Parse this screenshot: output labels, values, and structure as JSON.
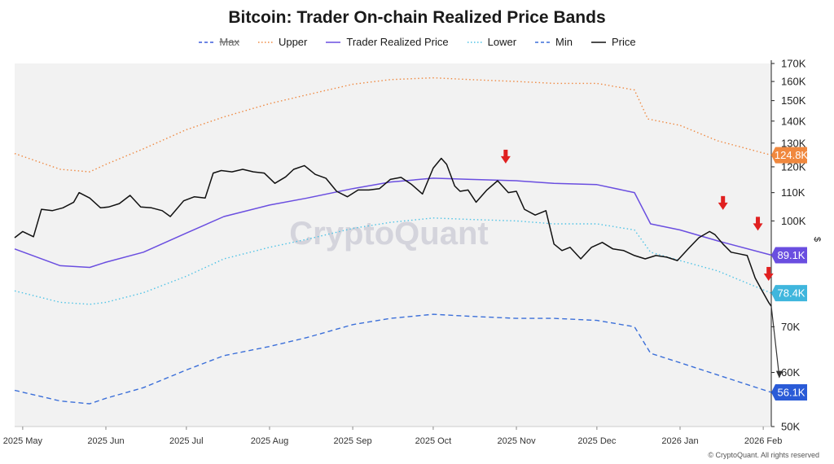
{
  "chart_data": {
    "type": "line",
    "title": "Bitcoin: Trader On-chain Realized Price Bands",
    "yunit": "$",
    "ylim": [
      50000,
      170000
    ],
    "yscale": "log",
    "yticks": [
      "170K",
      "160K",
      "150K",
      "140K",
      "130K",
      "120K",
      "110K",
      "100K",
      "70K",
      "60K",
      "50K"
    ],
    "ytick_values": [
      170000,
      160000,
      150000,
      140000,
      130000,
      120000,
      110000,
      100000,
      70000,
      60000,
      50000
    ],
    "xticks": [
      "2025 May",
      "2025 Jun",
      "2025 Jul",
      "2025 Aug",
      "2025 Sep",
      "2025 Oct",
      "2025 Nov",
      "2025 Dec",
      "2026 Jan",
      "2026 Feb"
    ],
    "xtick_dates": [
      "2025-05-01",
      "2025-06-01",
      "2025-07-01",
      "2025-08-01",
      "2025-09-01",
      "2025-10-01",
      "2025-11-01",
      "2025-12-01",
      "2026-01-01",
      "2026-02-01"
    ],
    "xlim": [
      "2025-04-28",
      "2026-02-04"
    ],
    "grid": false,
    "legend_position": "top-center",
    "watermark": "CryptoQuant",
    "series": [
      {
        "name": "Max",
        "style": "dashed",
        "color": "#3b5bdb",
        "hidden": true,
        "values": []
      },
      {
        "name": "Upper",
        "style": "dotted",
        "color": "#ef8a43",
        "x": [
          "2025-04-28",
          "2025-05-15",
          "2025-05-26",
          "2025-06-01",
          "2025-06-15",
          "2025-07-01",
          "2025-07-15",
          "2025-08-01",
          "2025-08-15",
          "2025-09-01",
          "2025-09-15",
          "2025-10-01",
          "2025-10-15",
          "2025-11-01",
          "2025-11-15",
          "2025-12-01",
          "2025-12-15",
          "2025-12-20",
          "2026-01-01",
          "2026-01-15",
          "2026-02-04"
        ],
        "values": [
          125500,
          119000,
          118000,
          121000,
          127500,
          136000,
          142000,
          148500,
          153000,
          158500,
          161000,
          162000,
          161000,
          160000,
          159000,
          159000,
          155500,
          141000,
          138000,
          131000,
          124800
        ]
      },
      {
        "name": "Trader Realized Price",
        "style": "solid",
        "color": "#6a4ee0",
        "x": [
          "2025-04-28",
          "2025-05-15",
          "2025-05-26",
          "2025-06-01",
          "2025-06-15",
          "2025-07-01",
          "2025-07-15",
          "2025-08-01",
          "2025-08-15",
          "2025-09-01",
          "2025-09-15",
          "2025-10-01",
          "2025-10-15",
          "2025-11-01",
          "2025-11-15",
          "2025-12-01",
          "2025-12-15",
          "2025-12-21",
          "2026-01-01",
          "2026-01-15",
          "2026-02-04"
        ],
        "values": [
          91000,
          86000,
          85500,
          87000,
          90000,
          96000,
          101500,
          105500,
          108000,
          111500,
          114000,
          115500,
          115000,
          114500,
          113500,
          113000,
          110000,
          99000,
          97000,
          93500,
          89100
        ]
      },
      {
        "name": "Lower",
        "style": "dotted",
        "color": "#4fc3e6",
        "x": [
          "2025-04-28",
          "2025-05-15",
          "2025-05-26",
          "2025-06-01",
          "2025-06-15",
          "2025-07-01",
          "2025-07-15",
          "2025-08-01",
          "2025-08-15",
          "2025-09-01",
          "2025-09-15",
          "2025-10-01",
          "2025-10-15",
          "2025-11-01",
          "2025-11-15",
          "2025-12-01",
          "2025-12-15",
          "2025-12-21",
          "2026-01-01",
          "2026-01-15",
          "2026-02-04"
        ],
        "values": [
          79000,
          76000,
          75500,
          76000,
          78500,
          83000,
          88000,
          91500,
          94000,
          97500,
          99500,
          101000,
          100500,
          100000,
          99000,
          99000,
          97000,
          90000,
          87500,
          84500,
          78400
        ]
      },
      {
        "name": "Min",
        "style": "dashed",
        "color": "#3b6fd9",
        "x": [
          "2025-04-28",
          "2025-05-15",
          "2025-05-26",
          "2025-06-01",
          "2025-06-15",
          "2025-07-01",
          "2025-07-15",
          "2025-08-01",
          "2025-08-15",
          "2025-09-01",
          "2025-09-15",
          "2025-10-01",
          "2025-10-15",
          "2025-11-01",
          "2025-11-15",
          "2025-12-01",
          "2025-12-15",
          "2025-12-21",
          "2026-01-01",
          "2026-01-15",
          "2026-02-04"
        ],
        "values": [
          56500,
          54500,
          54000,
          55000,
          57000,
          60500,
          63500,
          65500,
          67500,
          70500,
          72000,
          73000,
          72500,
          72000,
          72000,
          71500,
          70000,
          64000,
          62000,
          59500,
          56100
        ]
      },
      {
        "name": "Price",
        "style": "solid",
        "color": "#111111",
        "x": [
          "2025-04-28",
          "2025-05-01",
          "2025-05-05",
          "2025-05-08",
          "2025-05-12",
          "2025-05-16",
          "2025-05-20",
          "2025-05-22",
          "2025-05-26",
          "2025-05-30",
          "2025-06-02",
          "2025-06-06",
          "2025-06-10",
          "2025-06-14",
          "2025-06-18",
          "2025-06-22",
          "2025-06-25",
          "2025-06-30",
          "2025-07-04",
          "2025-07-08",
          "2025-07-11",
          "2025-07-14",
          "2025-07-18",
          "2025-07-22",
          "2025-07-26",
          "2025-07-30",
          "2025-08-03",
          "2025-08-07",
          "2025-08-10",
          "2025-08-14",
          "2025-08-18",
          "2025-08-22",
          "2025-08-26",
          "2025-08-30",
          "2025-09-03",
          "2025-09-07",
          "2025-09-11",
          "2025-09-15",
          "2025-09-19",
          "2025-09-23",
          "2025-09-27",
          "2025-10-01",
          "2025-10-04",
          "2025-10-06",
          "2025-10-09",
          "2025-10-11",
          "2025-10-14",
          "2025-10-17",
          "2025-10-21",
          "2025-10-25",
          "2025-10-29",
          "2025-11-01",
          "2025-11-04",
          "2025-11-08",
          "2025-11-12",
          "2025-11-15",
          "2025-11-18",
          "2025-11-21",
          "2025-11-25",
          "2025-11-29",
          "2025-12-03",
          "2025-12-07",
          "2025-12-11",
          "2025-12-15",
          "2025-12-19",
          "2025-12-23",
          "2025-12-27",
          "2025-12-31",
          "2026-01-04",
          "2026-01-08",
          "2026-01-12",
          "2026-01-14",
          "2026-01-17",
          "2026-01-20",
          "2026-01-23",
          "2026-01-26",
          "2026-01-29",
          "2026-02-01",
          "2026-02-03",
          "2026-02-04"
        ],
        "values": [
          94500,
          96500,
          94800,
          104000,
          103500,
          104500,
          106500,
          110000,
          108000,
          104500,
          104800,
          106000,
          109000,
          104800,
          104500,
          103500,
          101500,
          107000,
          108500,
          108000,
          117500,
          118500,
          118000,
          119000,
          118000,
          117500,
          113500,
          116000,
          119000,
          120500,
          117000,
          115500,
          110500,
          108500,
          111000,
          111000,
          111500,
          115000,
          115800,
          113000,
          109500,
          119500,
          123500,
          121000,
          112500,
          110500,
          111000,
          106500,
          111000,
          114500,
          110000,
          110500,
          104000,
          102000,
          103500,
          92500,
          90500,
          91500,
          88000,
          91500,
          93000,
          91000,
          90500,
          89000,
          88000,
          89000,
          88500,
          87500,
          91000,
          94500,
          96500,
          95500,
          92500,
          90000,
          89500,
          89000,
          82500,
          78500,
          76000,
          75000
        ]
      },
      {
        "name": "",
        "style": "arrow",
        "color": "#333333",
        "hidden_legend": true,
        "x": [
          "2026-02-04",
          "2026-02-07"
        ],
        "values": [
          75000,
          59000
        ]
      }
    ],
    "value_labels": [
      {
        "text": "124.8K",
        "value": 124800,
        "color": "#f0883e"
      },
      {
        "text": "89.1K",
        "value": 89100,
        "color": "#6a4ee0"
      },
      {
        "text": "78.4K",
        "value": 78400,
        "color": "#3fb6dd"
      },
      {
        "text": "56.1K",
        "value": 56100,
        "color": "#2a5bd7"
      }
    ],
    "annotations": [
      {
        "type": "down-arrow",
        "color": "#e02020",
        "x": "2025-10-28",
        "value": 121000
      },
      {
        "type": "down-arrow",
        "color": "#e02020",
        "x": "2026-01-17",
        "value": 103500
      },
      {
        "type": "down-arrow",
        "color": "#e02020",
        "x": "2026-01-30",
        "value": 96500
      },
      {
        "type": "down-arrow",
        "color": "#e02020",
        "x": "2026-02-03",
        "value": 81500
      }
    ]
  },
  "legend": [
    {
      "label": "Max",
      "color": "#3b5bdb",
      "style": "dashed",
      "disabled": true
    },
    {
      "label": "Upper",
      "color": "#ef8a43",
      "style": "dotted",
      "disabled": false
    },
    {
      "label": "Trader Realized Price",
      "color": "#6a4ee0",
      "style": "solid",
      "disabled": false
    },
    {
      "label": "Lower",
      "color": "#4fc3e6",
      "style": "dotted",
      "disabled": false
    },
    {
      "label": "Min",
      "color": "#3b6fd9",
      "style": "dashed",
      "disabled": false
    },
    {
      "label": "Price",
      "color": "#111111",
      "style": "solid",
      "disabled": false
    }
  ],
  "copyright": "© CryptoQuant. All rights reserved"
}
